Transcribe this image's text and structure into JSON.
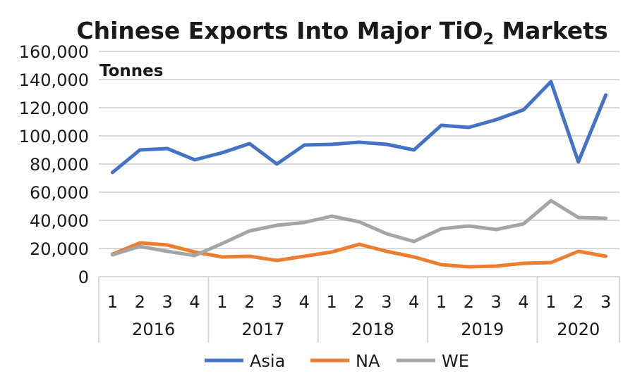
{
  "chart_data": {
    "type": "line",
    "title": "Chinese Exports Into Major TiO",
    "title_subscript": "2",
    "title_suffix": " Markets",
    "ylabel": "Tonnes",
    "ylim": [
      0,
      160000
    ],
    "yticks": [
      "0",
      "20,000",
      "40,000",
      "60,000",
      "80,000",
      "100,000",
      "120,000",
      "140,000",
      "160,000"
    ],
    "ytick_values": [
      0,
      20000,
      40000,
      60000,
      80000,
      100000,
      120000,
      140000,
      160000
    ],
    "grid": true,
    "legend_position": "bottom",
    "categories": [
      "1",
      "2",
      "3",
      "4",
      "1",
      "2",
      "3",
      "4",
      "1",
      "2",
      "3",
      "4",
      "1",
      "2",
      "3",
      "4",
      "1",
      "2",
      "3"
    ],
    "groups": [
      {
        "label": "2016",
        "count": 4
      },
      {
        "label": "2017",
        "count": 4
      },
      {
        "label": "2018",
        "count": 4
      },
      {
        "label": "2019",
        "count": 4
      },
      {
        "label": "2020",
        "count": 3
      }
    ],
    "series": [
      {
        "name": "Asia",
        "color": "#4472c4",
        "values": [
          74000,
          90000,
          91000,
          83000,
          88000,
          94500,
          80000,
          93500,
          94000,
          95500,
          94000,
          90000,
          107500,
          106000,
          111500,
          118500,
          138500,
          81500,
          129000
        ]
      },
      {
        "name": "NA",
        "color": "#ed7d31",
        "values": [
          16000,
          24000,
          22500,
          17500,
          14000,
          14500,
          11500,
          14500,
          17500,
          23000,
          18000,
          14000,
          8500,
          7000,
          7500,
          9500,
          10000,
          18000,
          14500
        ]
      },
      {
        "name": "WE",
        "color": "#a5a5a5",
        "values": [
          15500,
          21500,
          18000,
          15000,
          23500,
          32500,
          36500,
          38500,
          43000,
          39000,
          30500,
          25000,
          34000,
          36000,
          33500,
          37500,
          54000,
          42000,
          41500
        ]
      }
    ]
  }
}
